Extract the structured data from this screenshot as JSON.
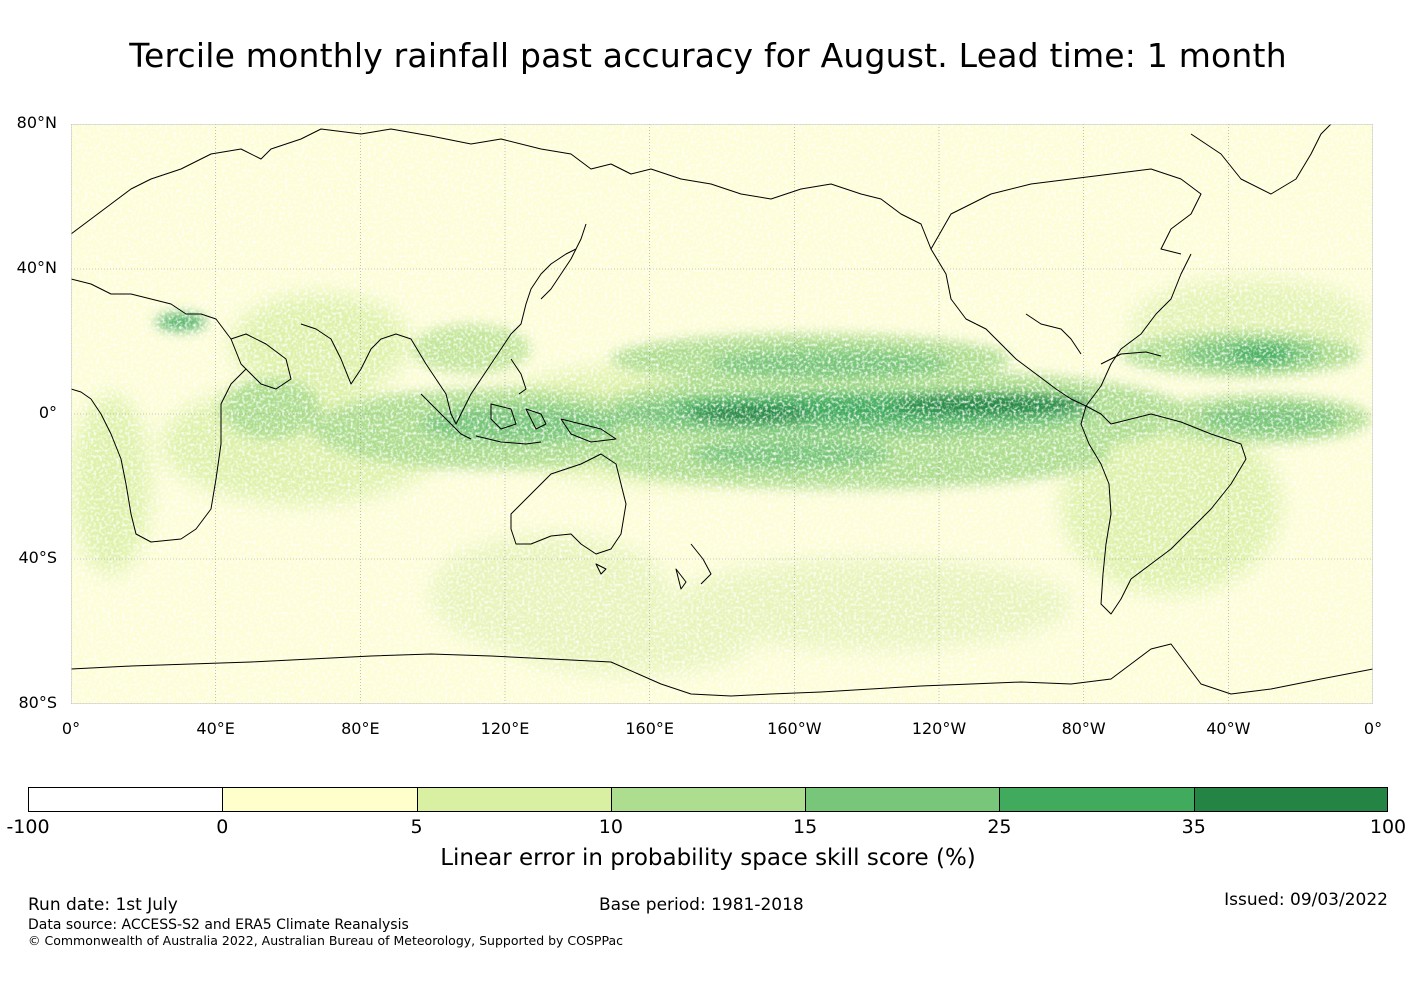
{
  "title": "Tercile monthly rainfall past accuracy for August. Lead time: 1 month",
  "map": {
    "lat_ticks": [
      {
        "value": 80,
        "label": "80°N"
      },
      {
        "value": 40,
        "label": "40°N"
      },
      {
        "value": 0,
        "label": "0°"
      },
      {
        "value": -40,
        "label": "40°S"
      },
      {
        "value": -80,
        "label": "80°S"
      }
    ],
    "lon_ticks": [
      {
        "value": 0,
        "label": "0°"
      },
      {
        "value": 40,
        "label": "40°E"
      },
      {
        "value": 80,
        "label": "80°E"
      },
      {
        "value": 120,
        "label": "120°E"
      },
      {
        "value": 160,
        "label": "160°E"
      },
      {
        "value": 200,
        "label": "160°W"
      },
      {
        "value": 240,
        "label": "120°W"
      },
      {
        "value": 280,
        "label": "80°W"
      },
      {
        "value": 320,
        "label": "40°W"
      },
      {
        "value": 360,
        "label": "0°"
      }
    ],
    "lon_range": [
      0,
      360
    ],
    "lat_range": [
      -80,
      80
    ],
    "grid": true
  },
  "colorbar": {
    "title": "Linear error in probability space skill score (%)",
    "ticks": [
      "-100",
      "0",
      "5",
      "10",
      "15",
      "25",
      "35",
      "100"
    ],
    "colors": [
      "#ffffff",
      "#ffffcc",
      "#d9f0a3",
      "#addd8e",
      "#78c679",
      "#41ab5d",
      "#238443"
    ]
  },
  "footer": {
    "run_date": "Run date: 1st July",
    "base_period": "Base period: 1981-2018",
    "issued": "Issued: 09/03/2022",
    "data_source": "Data source: ACCESS-S2 and ERA5 Climate Reanalysis",
    "copyright": "© Commonwealth of Australia 2022, Australian Bureau of Meteorology, Supported by COSPPac"
  }
}
